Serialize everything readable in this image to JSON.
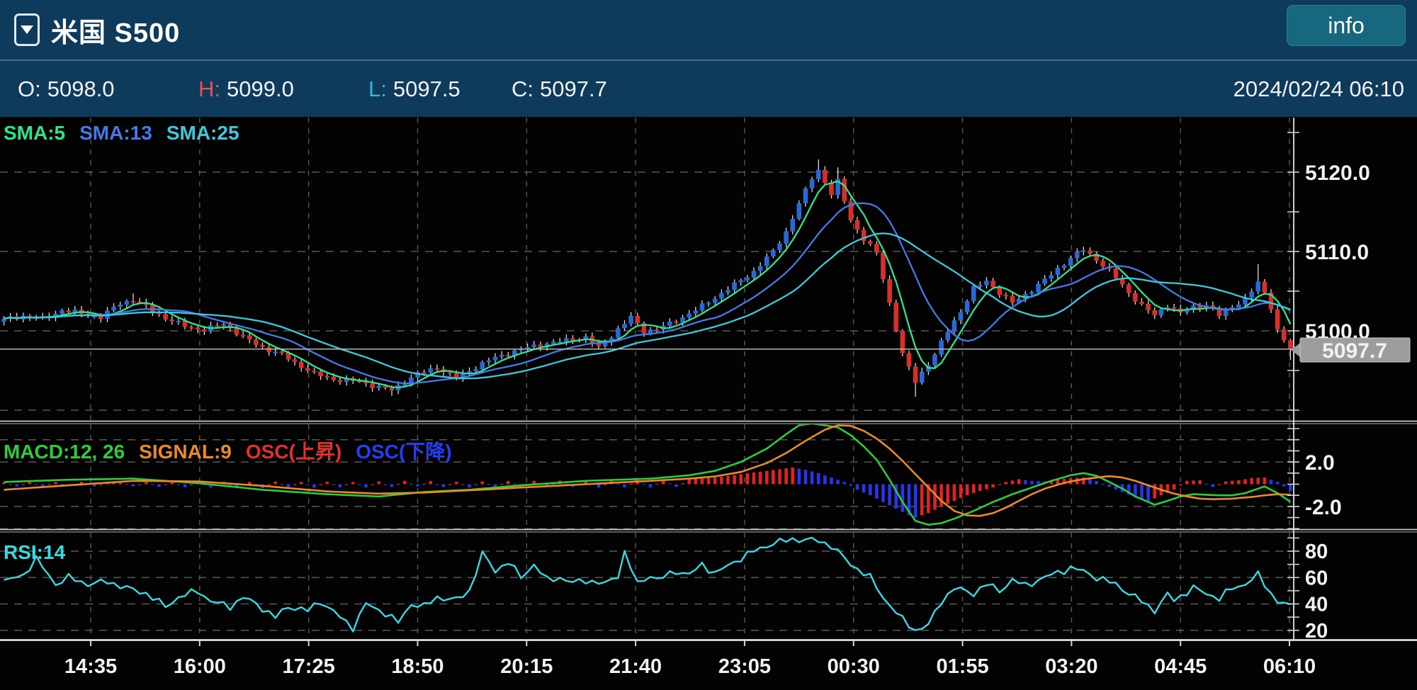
{
  "header": {
    "title": "米国 S500",
    "info_button": "info"
  },
  "ohlc": {
    "open_label": "O:",
    "open": "5098.0",
    "high_label": "H:",
    "high": "5099.0",
    "low_label": "L:",
    "low": "5097.5",
    "close_label": "C:",
    "close": "5097.7",
    "datetime": "2024/02/24 06:10"
  },
  "legends": {
    "sma": [
      {
        "label": "SMA:5",
        "color": "#2ee28e"
      },
      {
        "label": "SMA:13",
        "color": "#4678e8"
      },
      {
        "label": "SMA:25",
        "color": "#3cc9dc"
      }
    ],
    "macd": [
      {
        "label": "MACD:12, 26",
        "color": "#2dcc3a"
      },
      {
        "label": "SIGNAL:9",
        "color": "#e88a28"
      },
      {
        "label": "OSC(上昇)",
        "color": "#e03030"
      },
      {
        "label": "OSC(下降)",
        "color": "#2a3cf0"
      }
    ],
    "rsi": [
      {
        "label": "RSI:14",
        "color": "#38d9e2"
      }
    ]
  },
  "price_tag": {
    "value": "5097.7",
    "bg": "#9d9d9d"
  },
  "axes": {
    "price": [
      {
        "label": "5120.0",
        "value": 5120
      },
      {
        "label": "5110.0",
        "value": 5110
      },
      {
        "label": "5100.0",
        "value": 5100
      }
    ],
    "macd": [
      {
        "label": "2.0",
        "value": 2
      },
      {
        "label": "-2.0",
        "value": -2
      }
    ],
    "rsi": [
      {
        "label": "80",
        "value": 80
      },
      {
        "label": "60",
        "value": 60
      },
      {
        "label": "40",
        "value": 40
      },
      {
        "label": "20",
        "value": 20
      }
    ],
    "time": [
      "14:35",
      "16:00",
      "17:25",
      "18:50",
      "20:15",
      "21:40",
      "23:05",
      "00:30",
      "01:55",
      "03:20",
      "04:45",
      "06:10"
    ]
  },
  "chart_data": {
    "type": "candlestick",
    "panels": [
      "price_with_sma",
      "macd",
      "rsi"
    ],
    "candle_count": 200,
    "interval_minutes": 5,
    "current_price": 5097.7,
    "price_gridlines": [
      5120,
      5110,
      5100,
      5090
    ],
    "macd_gridlines": [
      4,
      2,
      -2,
      -4
    ],
    "rsi_gridlines": [
      80,
      60,
      40,
      20
    ],
    "sma_periods": [
      5,
      13,
      25
    ],
    "close_anchors": [
      [
        0,
        5101.4
      ],
      [
        3,
        5101.9
      ],
      [
        6,
        5101.5
      ],
      [
        9,
        5102.6
      ],
      [
        12,
        5102.2
      ],
      [
        15,
        5101.7
      ],
      [
        18,
        5103.5
      ],
      [
        20,
        5103.9
      ],
      [
        22,
        5103.0
      ],
      [
        25,
        5101.6
      ],
      [
        28,
        5100.6
      ],
      [
        31,
        5100.1
      ],
      [
        34,
        5100.9
      ],
      [
        37,
        5099.2
      ],
      [
        40,
        5097.9
      ],
      [
        43,
        5097.0
      ],
      [
        45,
        5096.0
      ],
      [
        48,
        5094.6
      ],
      [
        51,
        5093.9
      ],
      [
        55,
        5093.6
      ],
      [
        58,
        5092.9
      ],
      [
        60,
        5092.5
      ],
      [
        62,
        5093.6
      ],
      [
        64,
        5094.6
      ],
      [
        65,
        5094.8
      ],
      [
        67,
        5095.4
      ],
      [
        70,
        5094.0
      ],
      [
        72,
        5095.0
      ],
      [
        75,
        5096.3
      ],
      [
        78,
        5097.2
      ],
      [
        81,
        5097.9
      ],
      [
        84,
        5098.4
      ],
      [
        87,
        5098.8
      ],
      [
        90,
        5099.2
      ],
      [
        92,
        5097.8
      ],
      [
        95,
        5100.2
      ],
      [
        97,
        5101.7
      ],
      [
        99,
        5100.0
      ],
      [
        101,
        5100.2
      ],
      [
        104,
        5101.3
      ],
      [
        107,
        5102.6
      ],
      [
        110,
        5104.2
      ],
      [
        113,
        5105.8
      ],
      [
        116,
        5107.5
      ],
      [
        119,
        5110.0
      ],
      [
        121,
        5112.5
      ],
      [
        123,
        5116.0
      ],
      [
        125,
        5119.3
      ],
      [
        126,
        5120.3
      ],
      [
        128,
        5117.2
      ],
      [
        129,
        5118.8
      ],
      [
        131,
        5114.0
      ],
      [
        133,
        5111.5
      ],
      [
        135,
        5109.8
      ],
      [
        137,
        5103.5
      ],
      [
        139,
        5097.0
      ],
      [
        141,
        5093.6
      ],
      [
        142,
        5094.8
      ],
      [
        144,
        5097.0
      ],
      [
        146,
        5100.0
      ],
      [
        148,
        5102.5
      ],
      [
        150,
        5105.3
      ],
      [
        152,
        5106.3
      ],
      [
        154,
        5104.8
      ],
      [
        156,
        5103.5
      ],
      [
        158,
        5104.6
      ],
      [
        161,
        5106.4
      ],
      [
        163,
        5107.8
      ],
      [
        165,
        5109.2
      ],
      [
        167,
        5110.2
      ],
      [
        169,
        5109.0
      ],
      [
        171,
        5107.6
      ],
      [
        174,
        5104.8
      ],
      [
        176,
        5103.2
      ],
      [
        178,
        5101.9
      ],
      [
        180,
        5103.3
      ],
      [
        182,
        5102.2
      ],
      [
        184,
        5103.0
      ],
      [
        186,
        5103.3
      ],
      [
        188,
        5101.9
      ],
      [
        190,
        5103.1
      ],
      [
        192,
        5104.0
      ],
      [
        194,
        5106.0
      ],
      [
        195,
        5104.8
      ],
      [
        196,
        5103.0
      ],
      [
        197,
        5100.2
      ],
      [
        198,
        5098.8
      ],
      [
        199,
        5097.7
      ]
    ],
    "wick_overrides": [
      {
        "i": 20,
        "h": 5104.7
      },
      {
        "i": 60,
        "l": 5091.8
      },
      {
        "i": 126,
        "h": 5121.6
      },
      {
        "i": 129,
        "h": 5120.6
      },
      {
        "i": 141,
        "l": 5091.7
      },
      {
        "i": 194,
        "h": 5108.4
      },
      {
        "i": 199,
        "l": 5096.3
      }
    ],
    "macd_anchors": [
      [
        0,
        0.2
      ],
      [
        10,
        0.4
      ],
      [
        20,
        0.5
      ],
      [
        30,
        0.1
      ],
      [
        40,
        -0.5
      ],
      [
        50,
        -0.9
      ],
      [
        58,
        -1.1
      ],
      [
        65,
        -0.7
      ],
      [
        72,
        -0.5
      ],
      [
        80,
        -0.1
      ],
      [
        90,
        0.3
      ],
      [
        100,
        0.5
      ],
      [
        106,
        0.8
      ],
      [
        110,
        1.2
      ],
      [
        114,
        2.0
      ],
      [
        118,
        3.2
      ],
      [
        121,
        4.5
      ],
      [
        123,
        5.3
      ],
      [
        125,
        5.45
      ],
      [
        127,
        5.3
      ],
      [
        129,
        5.1
      ],
      [
        131,
        4.4
      ],
      [
        133,
        3.4
      ],
      [
        135,
        2.2
      ],
      [
        137,
        0.4
      ],
      [
        139,
        -1.6
      ],
      [
        141,
        -3.3
      ],
      [
        143,
        -3.65
      ],
      [
        145,
        -3.5
      ],
      [
        147,
        -3.1
      ],
      [
        150,
        -2.4
      ],
      [
        153,
        -1.6
      ],
      [
        156,
        -0.9
      ],
      [
        159,
        -0.3
      ],
      [
        162,
        0.3
      ],
      [
        165,
        0.8
      ],
      [
        167,
        1.0
      ],
      [
        169,
        0.75
      ],
      [
        171,
        0.2
      ],
      [
        173,
        -0.4
      ],
      [
        175,
        -1.1
      ],
      [
        177,
        -1.6
      ],
      [
        178,
        -1.85
      ],
      [
        180,
        -1.5
      ],
      [
        182,
        -1.1
      ],
      [
        184,
        -0.9
      ],
      [
        186,
        -0.95
      ],
      [
        188,
        -1.0
      ],
      [
        190,
        -1.0
      ],
      [
        192,
        -0.8
      ],
      [
        193,
        -0.6
      ],
      [
        195,
        -0.2
      ],
      [
        197,
        -0.8
      ],
      [
        199,
        -1.6
      ]
    ],
    "signal_anchors": [
      [
        0,
        -0.5
      ],
      [
        10,
        -0.1
      ],
      [
        20,
        0.3
      ],
      [
        30,
        0.25
      ],
      [
        40,
        -0.15
      ],
      [
        50,
        -0.65
      ],
      [
        58,
        -0.85
      ],
      [
        65,
        -0.75
      ],
      [
        72,
        -0.55
      ],
      [
        80,
        -0.3
      ],
      [
        90,
        0.0
      ],
      [
        100,
        0.3
      ],
      [
        106,
        0.5
      ],
      [
        110,
        0.7
      ],
      [
        114,
        1.1
      ],
      [
        118,
        1.9
      ],
      [
        121,
        2.8
      ],
      [
        124,
        3.9
      ],
      [
        127,
        4.9
      ],
      [
        129,
        5.3
      ],
      [
        131,
        5.25
      ],
      [
        133,
        4.8
      ],
      [
        135,
        4.1
      ],
      [
        137,
        3.2
      ],
      [
        139,
        2.1
      ],
      [
        141,
        0.9
      ],
      [
        143,
        -0.3
      ],
      [
        145,
        -1.5
      ],
      [
        147,
        -2.4
      ],
      [
        149,
        -2.8
      ],
      [
        151,
        -2.85
      ],
      [
        153,
        -2.6
      ],
      [
        155,
        -2.1
      ],
      [
        157,
        -1.5
      ],
      [
        159,
        -0.9
      ],
      [
        161,
        -0.4
      ],
      [
        163,
        -0.05
      ],
      [
        165,
        0.25
      ],
      [
        167,
        0.45
      ],
      [
        169,
        0.6
      ],
      [
        171,
        0.72
      ],
      [
        173,
        0.6
      ],
      [
        175,
        0.3
      ],
      [
        177,
        -0.1
      ],
      [
        179,
        -0.5
      ],
      [
        181,
        -0.85
      ],
      [
        183,
        -1.1
      ],
      [
        185,
        -1.3
      ],
      [
        187,
        -1.35
      ],
      [
        190,
        -1.3
      ],
      [
        193,
        -1.15
      ],
      [
        195,
        -1.0
      ],
      [
        197,
        -0.9
      ],
      [
        199,
        -0.95
      ]
    ],
    "hist_anchors": [
      [
        0,
        0.15
      ],
      [
        2,
        -0.2
      ],
      [
        4,
        0.18
      ],
      [
        6,
        -0.22
      ],
      [
        8,
        0.2
      ],
      [
        10,
        -0.18
      ],
      [
        12,
        0.22
      ],
      [
        14,
        -0.2
      ],
      [
        16,
        0.18
      ],
      [
        18,
        0.25
      ],
      [
        20,
        -0.2
      ],
      [
        22,
        0.2
      ],
      [
        24,
        -0.25
      ],
      [
        26,
        0.18
      ],
      [
        28,
        -0.28
      ],
      [
        30,
        0.2
      ],
      [
        32,
        -0.3
      ],
      [
        34,
        0.22
      ],
      [
        36,
        -0.3
      ],
      [
        38,
        0.2
      ],
      [
        40,
        -0.35
      ],
      [
        42,
        0.25
      ],
      [
        44,
        -0.3
      ],
      [
        46,
        0.2
      ],
      [
        48,
        -0.32
      ],
      [
        50,
        0.22
      ],
      [
        52,
        -0.28
      ],
      [
        54,
        0.2
      ],
      [
        56,
        -0.3
      ],
      [
        58,
        0.25
      ],
      [
        60,
        -0.25
      ],
      [
        62,
        0.3
      ],
      [
        64,
        -0.2
      ],
      [
        66,
        0.28
      ],
      [
        68,
        -0.25
      ],
      [
        70,
        0.22
      ],
      [
        72,
        -0.3
      ],
      [
        74,
        0.25
      ],
      [
        76,
        -0.22
      ],
      [
        78,
        0.28
      ],
      [
        80,
        -0.25
      ],
      [
        82,
        0.3
      ],
      [
        84,
        -0.22
      ],
      [
        86,
        0.32
      ],
      [
        88,
        -0.25
      ],
      [
        90,
        0.35
      ],
      [
        92,
        -0.3
      ],
      [
        94,
        0.3
      ],
      [
        96,
        -0.28
      ],
      [
        98,
        0.35
      ],
      [
        100,
        -0.3
      ],
      [
        102,
        0.4
      ],
      [
        104,
        -0.25
      ],
      [
        106,
        0.45
      ],
      [
        108,
        0.5
      ],
      [
        110,
        0.6
      ],
      [
        112,
        0.75
      ],
      [
        114,
        0.9
      ],
      [
        116,
        1.05
      ],
      [
        118,
        1.2
      ],
      [
        120,
        1.35
      ],
      [
        122,
        1.5
      ],
      [
        124,
        1.3
      ],
      [
        126,
        1.0
      ],
      [
        128,
        0.6
      ],
      [
        130,
        0.2
      ],
      [
        132,
        -0.5
      ],
      [
        134,
        -1.0
      ],
      [
        136,
        -1.6
      ],
      [
        138,
        -2.2
      ],
      [
        140,
        -2.8
      ],
      [
        141,
        -3.0
      ],
      [
        143,
        -2.6
      ],
      [
        145,
        -2.0
      ],
      [
        147,
        -1.5
      ],
      [
        149,
        -1.0
      ],
      [
        151,
        -0.6
      ],
      [
        153,
        -0.3
      ],
      [
        155,
        0.2
      ],
      [
        157,
        0.45
      ],
      [
        159,
        0.3
      ],
      [
        161,
        0.25
      ],
      [
        163,
        0.4
      ],
      [
        165,
        0.55
      ],
      [
        167,
        0.6
      ],
      [
        169,
        0.3
      ],
      [
        171,
        -0.25
      ],
      [
        173,
        -0.7
      ],
      [
        175,
        -1.2
      ],
      [
        177,
        -1.55
      ],
      [
        179,
        -1.0
      ],
      [
        181,
        -0.5
      ],
      [
        183,
        0.3
      ],
      [
        185,
        0.35
      ],
      [
        187,
        -0.25
      ],
      [
        189,
        0.25
      ],
      [
        191,
        0.35
      ],
      [
        193,
        0.55
      ],
      [
        195,
        0.6
      ],
      [
        197,
        0.2
      ],
      [
        199,
        -0.6
      ]
    ],
    "rsi_anchors": [
      [
        0,
        57
      ],
      [
        3,
        62
      ],
      [
        5,
        74
      ],
      [
        8,
        55
      ],
      [
        10,
        60
      ],
      [
        13,
        55
      ],
      [
        16,
        57
      ],
      [
        19,
        52
      ],
      [
        22,
        48
      ],
      [
        25,
        38
      ],
      [
        27,
        45
      ],
      [
        30,
        50
      ],
      [
        32,
        42
      ],
      [
        35,
        38
      ],
      [
        37,
        45
      ],
      [
        39,
        40
      ],
      [
        42,
        30
      ],
      [
        44,
        38
      ],
      [
        47,
        35
      ],
      [
        49,
        42
      ],
      [
        52,
        30
      ],
      [
        54,
        22
      ],
      [
        56,
        40
      ],
      [
        59,
        33
      ],
      [
        61,
        26
      ],
      [
        63,
        40
      ],
      [
        65,
        38
      ],
      [
        67,
        45
      ],
      [
        70,
        43
      ],
      [
        72,
        50
      ],
      [
        74,
        78
      ],
      [
        76,
        65
      ],
      [
        78,
        72
      ],
      [
        80,
        60
      ],
      [
        82,
        70
      ],
      [
        84,
        58
      ],
      [
        86,
        60
      ],
      [
        88,
        56
      ],
      [
        90,
        58
      ],
      [
        93,
        55
      ],
      [
        95,
        62
      ],
      [
        96,
        79
      ],
      [
        98,
        55
      ],
      [
        100,
        62
      ],
      [
        101,
        58
      ],
      [
        104,
        65
      ],
      [
        106,
        62
      ],
      [
        108,
        70
      ],
      [
        110,
        63
      ],
      [
        113,
        72
      ],
      [
        116,
        80
      ],
      [
        119,
        86
      ],
      [
        122,
        89
      ],
      [
        126,
        88
      ],
      [
        128,
        84
      ],
      [
        131,
        70
      ],
      [
        134,
        60
      ],
      [
        136,
        45
      ],
      [
        139,
        28
      ],
      [
        141,
        20
      ],
      [
        143,
        24
      ],
      [
        145,
        42
      ],
      [
        147,
        52
      ],
      [
        150,
        48
      ],
      [
        152,
        55
      ],
      [
        154,
        50
      ],
      [
        156,
        58
      ],
      [
        158,
        54
      ],
      [
        161,
        60
      ],
      [
        163,
        64
      ],
      [
        165,
        67
      ],
      [
        167,
        65
      ],
      [
        169,
        60
      ],
      [
        172,
        55
      ],
      [
        174,
        48
      ],
      [
        176,
        42
      ],
      [
        178,
        35
      ],
      [
        180,
        47
      ],
      [
        181,
        43
      ],
      [
        184,
        52
      ],
      [
        186,
        48
      ],
      [
        188,
        44
      ],
      [
        190,
        52
      ],
      [
        192,
        55
      ],
      [
        194,
        62
      ],
      [
        196,
        48
      ],
      [
        197,
        42
      ],
      [
        199,
        38
      ]
    ],
    "colors": {
      "up": "#2a69d5",
      "down": "#d92f29",
      "wick": "#ebebeb",
      "sma5": "#2ee28e",
      "sma13": "#4678e8",
      "sma25": "#3cc9dc",
      "macd": "#2dcc3a",
      "signal": "#e88a28",
      "hist_up": "#e02222",
      "hist_down": "#2636e8",
      "rsi": "#38d9e2",
      "grid": "#585858",
      "border": "#c9c9c9",
      "axis_line": "#e4e4e4",
      "current_price_line": "#b4b4b4"
    }
  }
}
